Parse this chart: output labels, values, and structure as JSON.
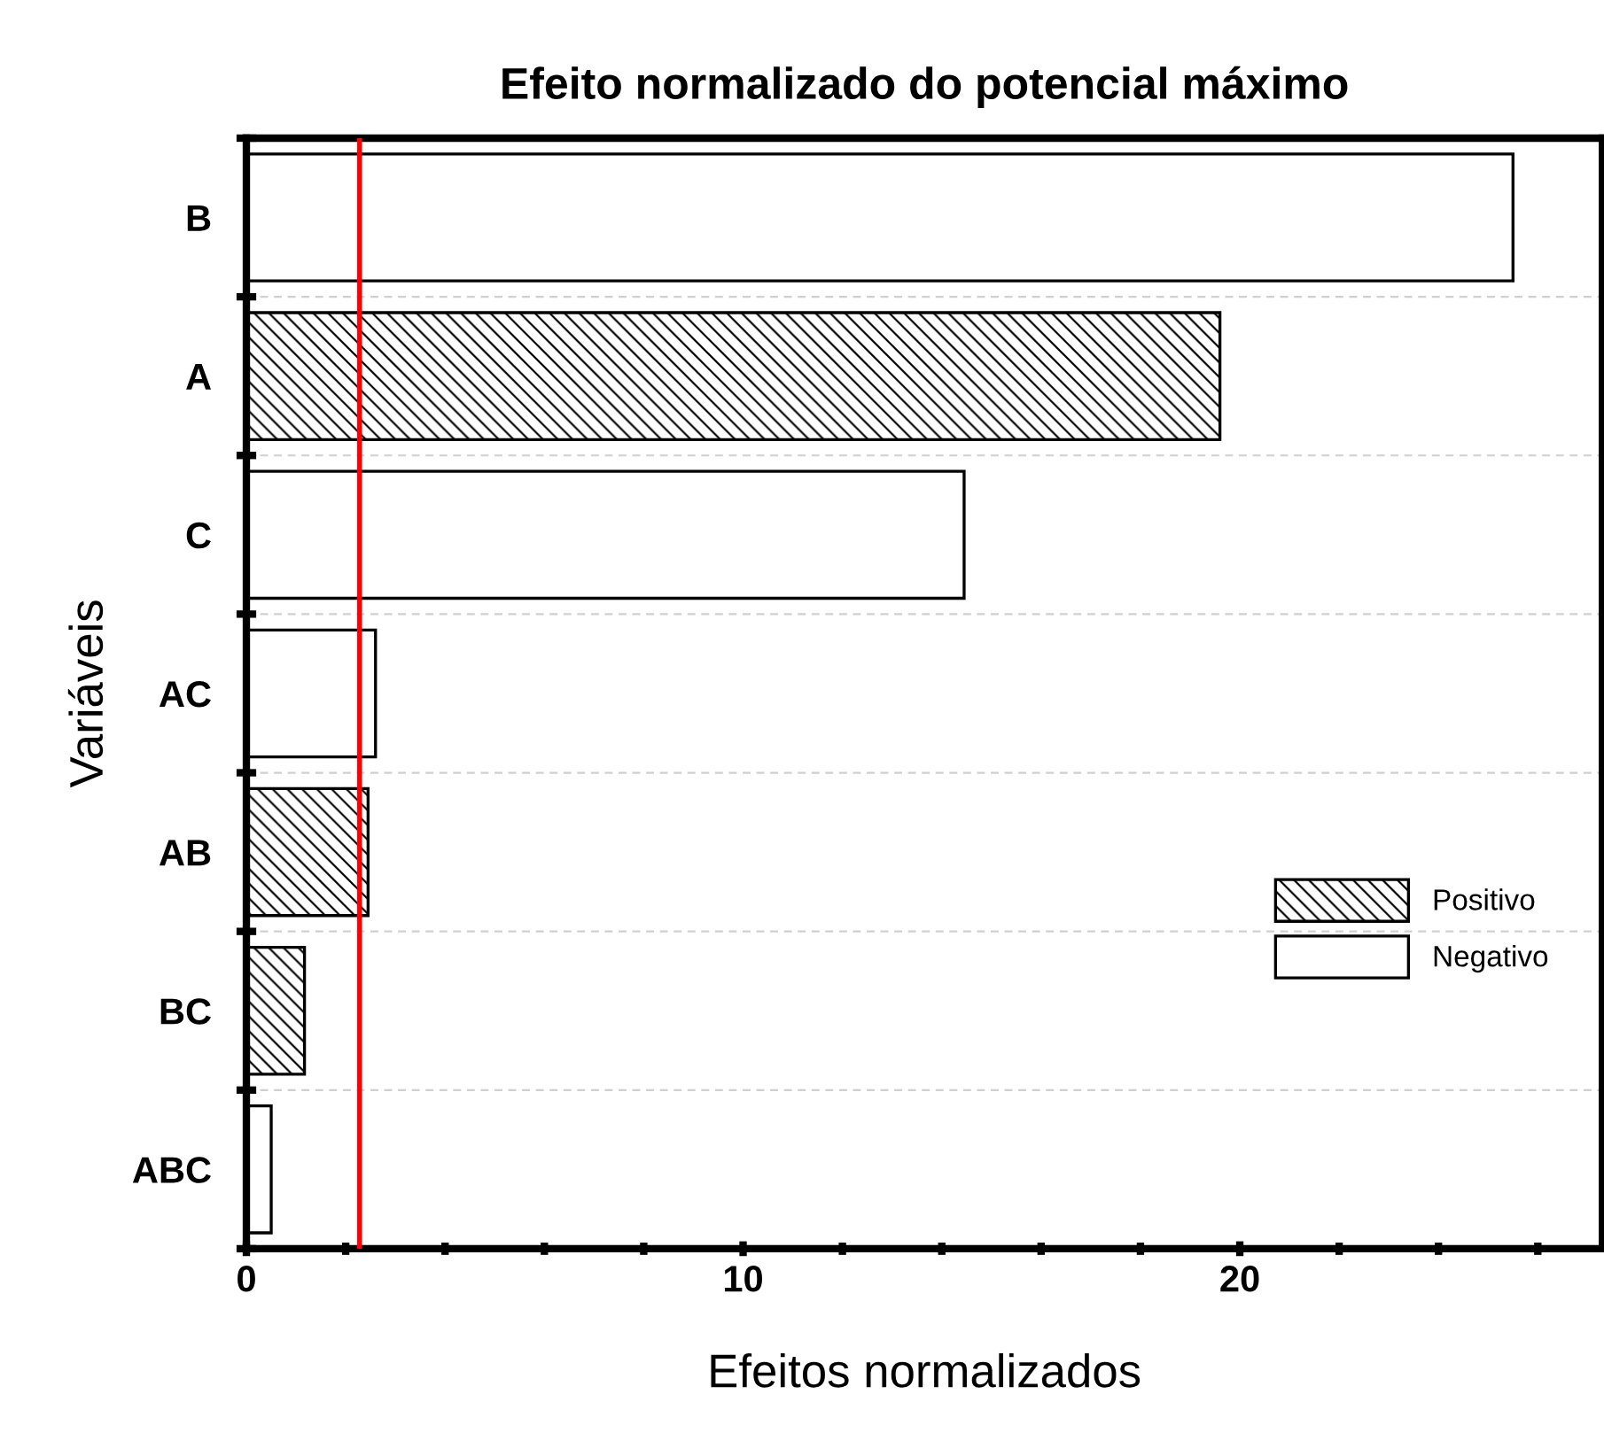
{
  "chart_data": {
    "type": "bar",
    "orientation": "horizontal",
    "title": "Efeito normalizado do potencial máximo",
    "xlabel": "Efeitos normalizados",
    "ylabel": "Variáveis",
    "categories": [
      "B",
      "A",
      "C",
      "AC",
      "AB",
      "BC",
      "ABC"
    ],
    "series": [
      {
        "name": "Positivo",
        "color": "#000000",
        "values": [
          null,
          19.6,
          null,
          null,
          2.45,
          1.17,
          null
        ]
      },
      {
        "name": "Negativo",
        "color": "#ffffff",
        "values": [
          25.5,
          null,
          14.45,
          2.6,
          null,
          null,
          0.5
        ]
      }
    ],
    "xlim": [
      0,
      27.3
    ],
    "xticks": [
      0,
      {
        "value": 2,
        "label": null
      },
      {
        "value": 4,
        "label": null
      },
      {
        "value": 6,
        "label": null
      },
      {
        "value": 8,
        "label": null
      },
      10,
      {
        "value": 12,
        "label": null
      },
      {
        "value": 14,
        "label": null
      },
      {
        "value": 16,
        "label": null
      },
      {
        "value": 18,
        "label": null
      },
      20,
      {
        "value": 22,
        "label": null
      },
      {
        "value": 24,
        "label": null
      },
      {
        "value": 26,
        "label": null
      }
    ],
    "ref_lines": [
      {
        "axis": "x",
        "value": 2.28,
        "color": "#ff0000"
      }
    ],
    "grid": "y",
    "legend": "bottom right"
  }
}
